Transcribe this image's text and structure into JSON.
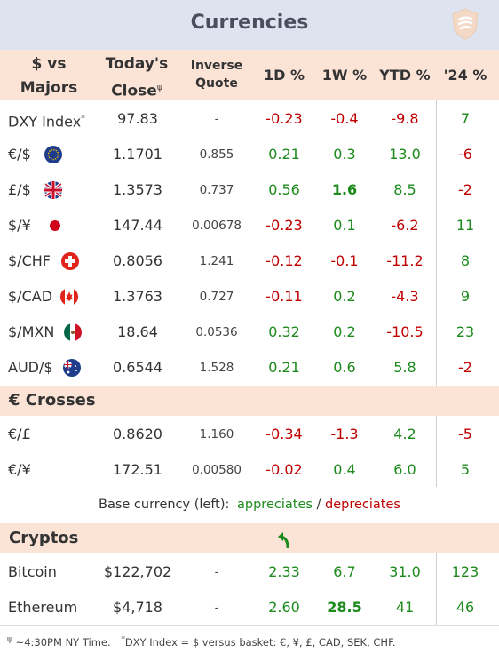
{
  "title": "Currencies",
  "headers": {
    "pair_line1": "$ vs",
    "pair_line2": "Majors",
    "close_line1": "Today's",
    "close_line2": "Close",
    "close_mark": "ψ",
    "inverse_line1": "Inverse",
    "inverse_line2": "Quote",
    "d1": "1D %",
    "w1": "1W %",
    "ytd": "YTD %",
    "y24": "'24 %"
  },
  "majors": [
    {
      "label": "DXY Index",
      "mark": "*",
      "flag": "",
      "close": "97.83",
      "inverse": "-",
      "d1": "-0.23",
      "w1": "-0.4",
      "ytd": "-9.8",
      "y24": "7"
    },
    {
      "label": "€/$",
      "mark": "",
      "flag": "eu-flag-icon",
      "close": "1.1701",
      "inverse": "0.855",
      "d1": "0.21",
      "w1": "0.3",
      "ytd": "13.0",
      "y24": "-6"
    },
    {
      "label": "£/$",
      "mark": "",
      "flag": "uk-flag-icon",
      "close": "1.3573",
      "inverse": "0.737",
      "d1": "0.56",
      "w1": "1.6",
      "ytd": "8.5",
      "y24": "-2"
    },
    {
      "label": "$/¥",
      "mark": "",
      "flag": "japan-flag-icon",
      "close": "147.44",
      "inverse": "0.00678",
      "d1": "-0.23",
      "w1": "0.1",
      "ytd": "-6.2",
      "y24": "11"
    },
    {
      "label": "$/CHF",
      "mark": "",
      "flag": "swiss-flag-icon",
      "close": "0.8056",
      "inverse": "1.241",
      "d1": "-0.12",
      "w1": "-0.1",
      "ytd": "-11.2",
      "y24": "8"
    },
    {
      "label": "$/CAD",
      "mark": "",
      "flag": "canada-flag-icon",
      "close": "1.3763",
      "inverse": "0.727",
      "d1": "-0.11",
      "w1": "0.2",
      "ytd": "-4.3",
      "y24": "9"
    },
    {
      "label": "$/MXN",
      "mark": "",
      "flag": "mexico-flag-icon",
      "close": "18.64",
      "inverse": "0.0536",
      "d1": "0.32",
      "w1": "0.2",
      "ytd": "-10.5",
      "y24": "23"
    },
    {
      "label": "AUD/$",
      "mark": "",
      "flag": "australia-flag-icon",
      "close": "0.6544",
      "inverse": "1.528",
      "d1": "0.21",
      "w1": "0.6",
      "ytd": "5.8",
      "y24": "-2"
    }
  ],
  "crosses_title": "€ Crosses",
  "crosses": [
    {
      "label": "€/£",
      "close": "0.8620",
      "inverse": "1.160",
      "d1": "-0.34",
      "w1": "-1.3",
      "ytd": "4.2",
      "y24": "-5"
    },
    {
      "label": "€/¥",
      "close": "172.51",
      "inverse": "0.00580",
      "d1": "-0.02",
      "w1": "0.4",
      "ytd": "6.0",
      "y24": "5"
    }
  ],
  "legend": {
    "prefix": "Base currency (left):",
    "appreciates": "appreciates",
    "sep": "/",
    "depreciates": "depreciates"
  },
  "cryptos_title": "Cryptos",
  "cryptos_icon": "curved-arrow-up-icon",
  "cryptos": [
    {
      "label": "Bitcoin",
      "close": "$122,702",
      "inverse": "-",
      "d1": "2.33",
      "w1": "6.7",
      "ytd": "31.0",
      "y24": "123"
    },
    {
      "label": "Ethereum",
      "close": "$4,718",
      "inverse": "-",
      "d1": "2.60",
      "w1": "28.5",
      "ytd": "41",
      "y24": "46"
    }
  ],
  "footer": {
    "mark1": "ψ",
    "text1": " ~4:30PM NY Time.",
    "mark2": "*",
    "text2": "DXY Index = $ versus basket: €, ¥, £, CAD, SEK, CHF."
  },
  "colors": {
    "positive": "#1c8a1c",
    "negative": "#c00000",
    "header_bg": "#fbe3d6",
    "title_bg": "#dde3ef"
  }
}
